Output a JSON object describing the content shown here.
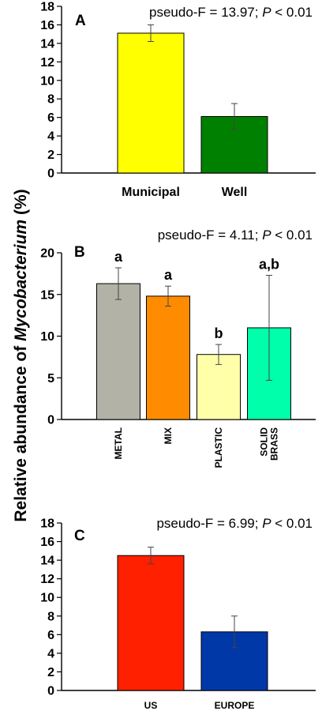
{
  "y_axis_label": {
    "prefix": "Relative abundance of ",
    "italic": "Mycobacterium",
    "suffix": " (%)"
  },
  "chart_data": [
    {
      "type": "bar",
      "panel": "A",
      "stat_prefix": "pseudo-F = 13.97; ",
      "stat_p": "P",
      "stat_suffix": " < 0.01",
      "categories": [
        "Municipal",
        "Well"
      ],
      "values": [
        15.1,
        6.1
      ],
      "errors": [
        0.9,
        1.4
      ],
      "colors": [
        "#ffff00",
        "#008000"
      ],
      "ylim": [
        0,
        18
      ],
      "yticks": [
        0,
        2,
        4,
        6,
        8,
        10,
        12,
        14,
        16,
        18
      ],
      "grid": false
    },
    {
      "type": "bar",
      "panel": "B",
      "stat_prefix": "pseudo-F = 4.11; ",
      "stat_p": "P",
      "stat_suffix": " < 0.01",
      "categories": [
        "METAL",
        "MIX",
        "PLASTIC",
        "SOLID BRASS"
      ],
      "values": [
        16.3,
        14.8,
        7.8,
        11.0
      ],
      "errors": [
        1.9,
        1.2,
        1.2,
        6.3
      ],
      "letters": [
        "a",
        "a",
        "b",
        "a,b"
      ],
      "colors": [
        "#b2b2a6",
        "#ff8c00",
        "#ffffaa",
        "#00ffaa"
      ],
      "ylim": [
        0,
        20
      ],
      "yticks": [
        0,
        5,
        10,
        15,
        20
      ],
      "grid": false
    },
    {
      "type": "bar",
      "panel": "C",
      "stat_prefix": "pseudo-F = 6.99; ",
      "stat_p": "P",
      "stat_suffix": " < 0.01",
      "categories": [
        "US",
        "EUROPE"
      ],
      "values": [
        14.5,
        6.3
      ],
      "errors": [
        0.9,
        1.7
      ],
      "colors": [
        "#ff2000",
        "#0038a8"
      ],
      "ylim": [
        0,
        18
      ],
      "yticks": [
        0,
        2,
        4,
        6,
        8,
        10,
        12,
        14,
        16,
        18
      ],
      "grid": false
    }
  ]
}
